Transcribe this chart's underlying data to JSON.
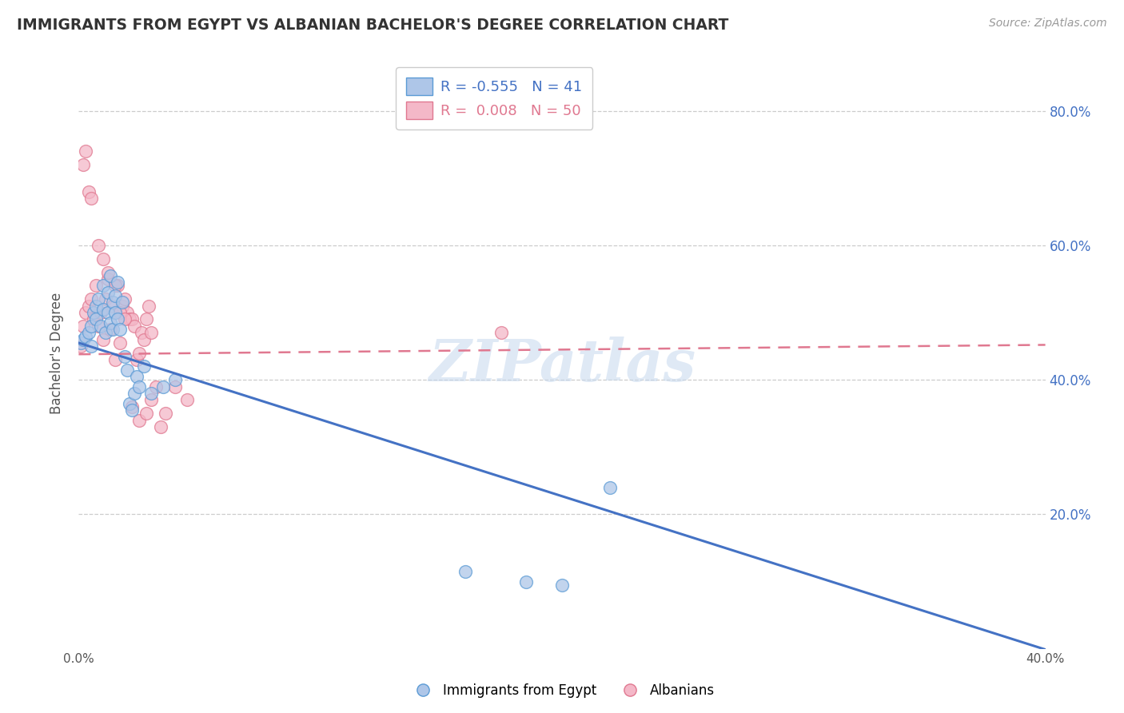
{
  "title": "IMMIGRANTS FROM EGYPT VS ALBANIAN BACHELOR'S DEGREE CORRELATION CHART",
  "source": "Source: ZipAtlas.com",
  "xlabel": "",
  "ylabel": "Bachelor's Degree",
  "xlim": [
    0.0,
    0.4
  ],
  "ylim": [
    0.0,
    0.88
  ],
  "xticks": [
    0.0,
    0.1,
    0.2,
    0.3,
    0.4
  ],
  "xtick_labels": [
    "0.0%",
    "",
    "",
    "",
    "40.0%"
  ],
  "ytick_positions": [
    0.2,
    0.4,
    0.6,
    0.8
  ],
  "ytick_labels": [
    "20.0%",
    "40.0%",
    "60.0%",
    "80.0%"
  ],
  "blue_color": "#aec6e8",
  "blue_edge": "#5b9bd5",
  "pink_color": "#f4b8c8",
  "pink_edge": "#e07890",
  "line_blue": "#4472c4",
  "line_pink": "#e07890",
  "legend_r_blue": "-0.555",
  "legend_n_blue": "41",
  "legend_r_pink": "0.008",
  "legend_n_pink": "50",
  "watermark": "ZIPatlas",
  "blue_intercept": 0.455,
  "blue_slope": -1.14,
  "pink_intercept": 0.438,
  "pink_slope": 0.035,
  "blue_x": [
    0.001,
    0.002,
    0.003,
    0.004,
    0.005,
    0.005,
    0.006,
    0.007,
    0.007,
    0.008,
    0.009,
    0.01,
    0.01,
    0.011,
    0.012,
    0.012,
    0.013,
    0.013,
    0.014,
    0.014,
    0.015,
    0.015,
    0.016,
    0.016,
    0.017,
    0.018,
    0.019,
    0.02,
    0.021,
    0.022,
    0.023,
    0.024,
    0.025,
    0.027,
    0.03,
    0.035,
    0.04,
    0.16,
    0.185,
    0.2,
    0.22
  ],
  "blue_y": [
    0.455,
    0.46,
    0.465,
    0.47,
    0.48,
    0.45,
    0.5,
    0.51,
    0.49,
    0.52,
    0.48,
    0.505,
    0.54,
    0.47,
    0.53,
    0.5,
    0.485,
    0.555,
    0.475,
    0.515,
    0.5,
    0.525,
    0.49,
    0.545,
    0.475,
    0.515,
    0.435,
    0.415,
    0.365,
    0.355,
    0.38,
    0.405,
    0.39,
    0.42,
    0.38,
    0.39,
    0.4,
    0.115,
    0.1,
    0.095,
    0.24
  ],
  "pink_x": [
    0.001,
    0.002,
    0.003,
    0.004,
    0.005,
    0.006,
    0.007,
    0.008,
    0.009,
    0.01,
    0.011,
    0.012,
    0.013,
    0.014,
    0.015,
    0.016,
    0.017,
    0.018,
    0.019,
    0.02,
    0.021,
    0.022,
    0.023,
    0.024,
    0.025,
    0.026,
    0.027,
    0.028,
    0.029,
    0.03,
    0.002,
    0.003,
    0.004,
    0.005,
    0.008,
    0.01,
    0.012,
    0.015,
    0.017,
    0.019,
    0.022,
    0.025,
    0.028,
    0.03,
    0.032,
    0.034,
    0.036,
    0.04,
    0.045,
    0.175
  ],
  "pink_y": [
    0.45,
    0.48,
    0.5,
    0.51,
    0.52,
    0.49,
    0.54,
    0.48,
    0.5,
    0.46,
    0.52,
    0.55,
    0.475,
    0.51,
    0.43,
    0.54,
    0.455,
    0.51,
    0.52,
    0.5,
    0.49,
    0.49,
    0.48,
    0.43,
    0.44,
    0.47,
    0.46,
    0.49,
    0.51,
    0.47,
    0.72,
    0.74,
    0.68,
    0.67,
    0.6,
    0.58,
    0.56,
    0.54,
    0.5,
    0.49,
    0.36,
    0.34,
    0.35,
    0.37,
    0.39,
    0.33,
    0.35,
    0.39,
    0.37,
    0.47
  ]
}
